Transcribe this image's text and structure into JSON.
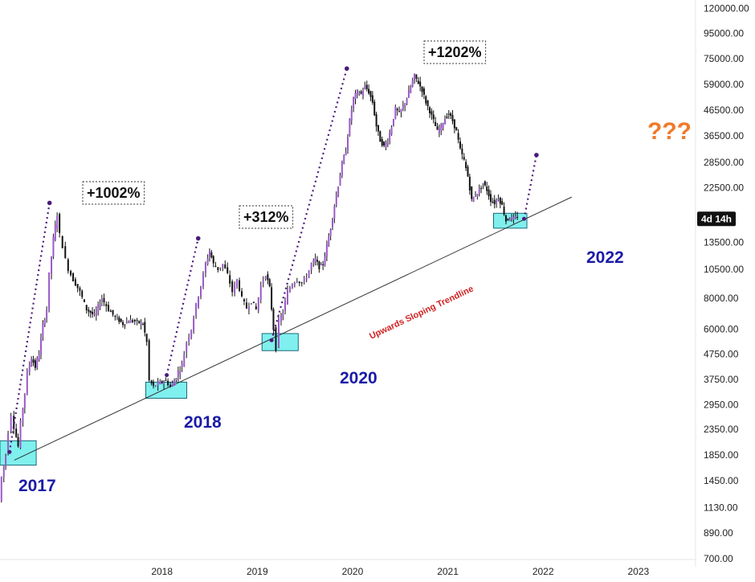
{
  "chart_data": {
    "type": "line",
    "scale": "log",
    "title": "",
    "xlabel": "",
    "ylabel": "",
    "ylim": [
      650,
      130000
    ],
    "xlim": [
      2016.3,
      2023.6
    ],
    "grid": false,
    "colors": {
      "candle_body": "#9b59c8",
      "candle_wick": "#111111",
      "projection": "#4a1a7a",
      "trendline": "#333333",
      "zone_fill": "#7ff0ee",
      "zone_stroke": "#1a6a7a",
      "year_label": "#1a1aa8",
      "trend_label": "#d32222",
      "question": "#f07a2a"
    },
    "y_ticks": [
      {
        "value": 120000,
        "label": "120000.00"
      },
      {
        "value": 95000,
        "label": "95000.00"
      },
      {
        "value": 75000,
        "label": "75000.00"
      },
      {
        "value": 59000,
        "label": "59000.00"
      },
      {
        "value": 46500,
        "label": "46500.00"
      },
      {
        "value": 36500,
        "label": "36500.00"
      },
      {
        "value": 28500,
        "label": "28500.00"
      },
      {
        "value": 22500,
        "label": "22500.00"
      },
      {
        "value": 13500,
        "label": "13500.00"
      },
      {
        "value": 10500,
        "label": "10500.00"
      },
      {
        "value": 8000,
        "label": "8000.00"
      },
      {
        "value": 6000,
        "label": "6000.00"
      },
      {
        "value": 4750,
        "label": "4750.00"
      },
      {
        "value": 3750,
        "label": "3750.00"
      },
      {
        "value": 2950,
        "label": "2950.00"
      },
      {
        "value": 2350,
        "label": "2350.00"
      },
      {
        "value": 1850,
        "label": "1850.00"
      },
      {
        "value": 1450,
        "label": "1450.00"
      },
      {
        "value": 1130,
        "label": "1130.00"
      },
      {
        "value": 890,
        "label": "890.00"
      },
      {
        "value": 700,
        "label": "700.00"
      }
    ],
    "x_ticks": [
      {
        "value": 2018.0,
        "label": "2018"
      },
      {
        "value": 2019.0,
        "label": "2019"
      },
      {
        "value": 2020.0,
        "label": "2020"
      },
      {
        "value": 2021.0,
        "label": "2021"
      },
      {
        "value": 2022.0,
        "label": "2022"
      },
      {
        "value": 2023.0,
        "label": "2023"
      }
    ],
    "price_badge": {
      "text": "4d 14h",
      "value": 16800
    },
    "series": [
      {
        "values": [
          [
            2016.3,
            1200
          ],
          [
            2016.33,
            1500
          ],
          [
            2016.37,
            1850
          ],
          [
            2016.4,
            2300
          ],
          [
            2016.43,
            2700
          ],
          [
            2016.46,
            2400
          ],
          [
            2016.5,
            2000
          ],
          [
            2016.53,
            2500
          ],
          [
            2016.57,
            3300
          ],
          [
            2016.6,
            4000
          ],
          [
            2016.64,
            4600
          ],
          [
            2016.68,
            4200
          ],
          [
            2016.72,
            4800
          ],
          [
            2016.76,
            6200
          ],
          [
            2016.8,
            7200
          ],
          [
            2016.83,
            10000
          ],
          [
            2016.87,
            14000
          ],
          [
            2016.91,
            17500
          ],
          [
            2016.94,
            14500
          ],
          [
            2016.97,
            13000
          ],
          [
            2017.0,
            11500
          ],
          [
            2017.03,
            10500
          ],
          [
            2017.08,
            9500
          ],
          [
            2017.15,
            8500
          ],
          [
            2017.22,
            7200
          ],
          [
            2017.3,
            6800
          ],
          [
            2017.38,
            8000
          ],
          [
            2017.45,
            7200
          ],
          [
            2017.52,
            6700
          ],
          [
            2017.6,
            6300
          ],
          [
            2017.68,
            6500
          ],
          [
            2017.75,
            6400
          ],
          [
            2017.81,
            6300
          ],
          [
            2017.85,
            5300
          ],
          [
            2017.88,
            3700
          ],
          [
            2017.92,
            3500
          ],
          [
            2017.97,
            3600
          ],
          [
            2018.05,
            3700
          ],
          [
            2018.1,
            3500
          ],
          [
            2018.14,
            3700
          ],
          [
            2018.18,
            4000
          ],
          [
            2018.22,
            4300
          ],
          [
            2018.27,
            5300
          ],
          [
            2018.32,
            6000
          ],
          [
            2018.37,
            7500
          ],
          [
            2018.42,
            9000
          ],
          [
            2018.47,
            11000
          ],
          [
            2018.51,
            12500
          ],
          [
            2018.55,
            11000
          ],
          [
            2018.6,
            10500
          ],
          [
            2018.65,
            11000
          ],
          [
            2018.7,
            10000
          ],
          [
            2018.75,
            8500
          ],
          [
            2018.8,
            9500
          ],
          [
            2018.85,
            8000
          ],
          [
            2018.9,
            7300
          ],
          [
            2018.95,
            7800
          ],
          [
            2019.0,
            7200
          ],
          [
            2019.05,
            9000
          ],
          [
            2019.1,
            10000
          ],
          [
            2019.14,
            8800
          ],
          [
            2019.18,
            6000
          ],
          [
            2019.21,
            5000
          ],
          [
            2019.24,
            6500
          ],
          [
            2019.28,
            7000
          ],
          [
            2019.33,
            8500
          ],
          [
            2019.38,
            9200
          ],
          [
            2019.43,
            9500
          ],
          [
            2019.48,
            9200
          ],
          [
            2019.53,
            9800
          ],
          [
            2019.58,
            11000
          ],
          [
            2019.62,
            11500
          ],
          [
            2019.66,
            10700
          ],
          [
            2019.7,
            11000
          ],
          [
            2019.74,
            13000
          ],
          [
            2019.78,
            15500
          ],
          [
            2019.82,
            19000
          ],
          [
            2019.86,
            23000
          ],
          [
            2019.9,
            28000
          ],
          [
            2019.94,
            32000
          ],
          [
            2019.98,
            42000
          ],
          [
            2020.02,
            52000
          ],
          [
            2020.06,
            55000
          ],
          [
            2020.1,
            54000
          ],
          [
            2020.14,
            58000
          ],
          [
            2020.18,
            55000
          ],
          [
            2020.22,
            50000
          ],
          [
            2020.26,
            40000
          ],
          [
            2020.3,
            35000
          ],
          [
            2020.34,
            33000
          ],
          [
            2020.38,
            35000
          ],
          [
            2020.42,
            40000
          ],
          [
            2020.46,
            47000
          ],
          [
            2020.5,
            45000
          ],
          [
            2020.54,
            48000
          ],
          [
            2020.58,
            52000
          ],
          [
            2020.62,
            58000
          ],
          [
            2020.66,
            64000
          ],
          [
            2020.7,
            60000
          ],
          [
            2020.74,
            56000
          ],
          [
            2020.78,
            50000
          ],
          [
            2020.82,
            46000
          ],
          [
            2020.86,
            42000
          ],
          [
            2020.9,
            38000
          ],
          [
            2020.94,
            40000
          ],
          [
            2020.98,
            43000
          ],
          [
            2021.02,
            45000
          ],
          [
            2021.06,
            42000
          ],
          [
            2021.1,
            38000
          ],
          [
            2021.14,
            32000
          ],
          [
            2021.18,
            29000
          ],
          [
            2021.22,
            25000
          ],
          [
            2021.26,
            20000
          ],
          [
            2021.3,
            21000
          ],
          [
            2021.34,
            22000
          ],
          [
            2021.38,
            23500
          ],
          [
            2021.42,
            22000
          ],
          [
            2021.46,
            20000
          ],
          [
            2021.5,
            19500
          ],
          [
            2021.54,
            20500
          ],
          [
            2021.58,
            19000
          ],
          [
            2021.62,
            16500
          ],
          [
            2021.66,
            17000
          ],
          [
            2021.7,
            16800
          ],
          [
            2021.74,
            17200
          ]
        ]
      }
    ],
    "zones": [
      {
        "label": "2017",
        "x0": 2016.3,
        "x1": 2016.68,
        "y0": 1680,
        "y1": 2110
      },
      {
        "label": "2018",
        "x0": 2017.83,
        "x1": 2018.26,
        "y0": 3140,
        "y1": 3650
      },
      {
        "label": "2020",
        "x0": 2019.05,
        "x1": 2019.43,
        "y0": 4900,
        "y1": 5750
      },
      {
        "label": "2022",
        "x0": 2021.48,
        "x1": 2021.83,
        "y0": 15400,
        "y1": 17700
      }
    ],
    "trendline": {
      "from": [
        2016.45,
        1760
      ],
      "to": [
        2022.3,
        20600
      ],
      "label": "Upwards Sloping Trendline"
    },
    "projections": [
      {
        "from": [
          2016.4,
          1900
        ],
        "to": [
          2016.82,
          19500
        ],
        "label": "+1002%"
      },
      {
        "from": [
          2018.05,
          3900
        ],
        "to": [
          2018.38,
          14000
        ],
        "label": "+312%"
      },
      {
        "from": [
          2019.15,
          5400
        ],
        "to": [
          2019.94,
          68500
        ],
        "label": "+1202%"
      },
      {
        "from": [
          2021.8,
          16800
        ],
        "to": [
          2021.93,
          30500
        ],
        "label": "???"
      }
    ],
    "year_labels": [
      "2017",
      "2018",
      "2020",
      "2022"
    ]
  }
}
